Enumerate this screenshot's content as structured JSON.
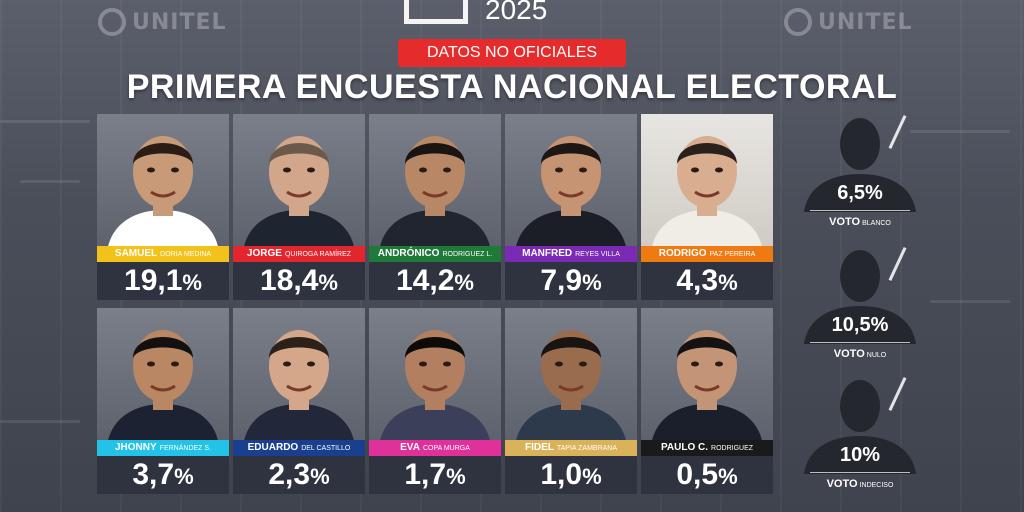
{
  "header": {
    "year": "2025",
    "badge": "DATOS NO OFICIALES",
    "title": "PRIMERA ENCUESTA NACIONAL ELECTORAL"
  },
  "watermark": "UNITEL",
  "colors": {
    "background": "#4a4e59",
    "badge": "#e52b2b",
    "percent_box": "#2f3340"
  },
  "candidates": [
    {
      "first": "SAMUEL",
      "last": "DORIA MEDINA",
      "percent": "19,1",
      "color": "#f2c21b"
    },
    {
      "first": "JORGE",
      "last": "QUIROGA RAMÍREZ",
      "percent": "18,4",
      "color": "#e3262e"
    },
    {
      "first": "ANDRÓNICO",
      "last": "RODRIGUEZ L.",
      "percent": "14,2",
      "color": "#1f7a3a"
    },
    {
      "first": "MANFRED",
      "last": "REYES VILLA",
      "percent": "7,9",
      "color": "#7b2ab5"
    },
    {
      "first": "RODRIGO",
      "last": "PAZ PEREIRA",
      "percent": "4,3",
      "color": "#f07a12"
    },
    {
      "first": "JHONNY",
      "last": "FERNÁNDEZ S.",
      "percent": "3,7",
      "color": "#22c3e6"
    },
    {
      "first": "EDUARDO",
      "last": "DEL CASTILLO",
      "percent": "2,3",
      "color": "#1b3f8f"
    },
    {
      "first": "EVA",
      "last": "COPA MURGA",
      "percent": "1,7",
      "color": "#e0309a"
    },
    {
      "first": "FIDEL",
      "last": "TAPIA ZAMBRANA",
      "percent": "1,0",
      "color": "#d9b25a"
    },
    {
      "first": "PAULO C.",
      "last": "RODRIGUEZ",
      "percent": "0,5",
      "color": "#1a1a1a"
    }
  ],
  "percent_symbol": "%",
  "other_votes": [
    {
      "percent": "6,5%",
      "label": "VOTO",
      "sub": "BLANCO"
    },
    {
      "percent": "10,5%",
      "label": "VOTO",
      "sub": "NULO"
    },
    {
      "percent": "10%",
      "label": "VOTO",
      "sub": "INDECISO"
    }
  ]
}
